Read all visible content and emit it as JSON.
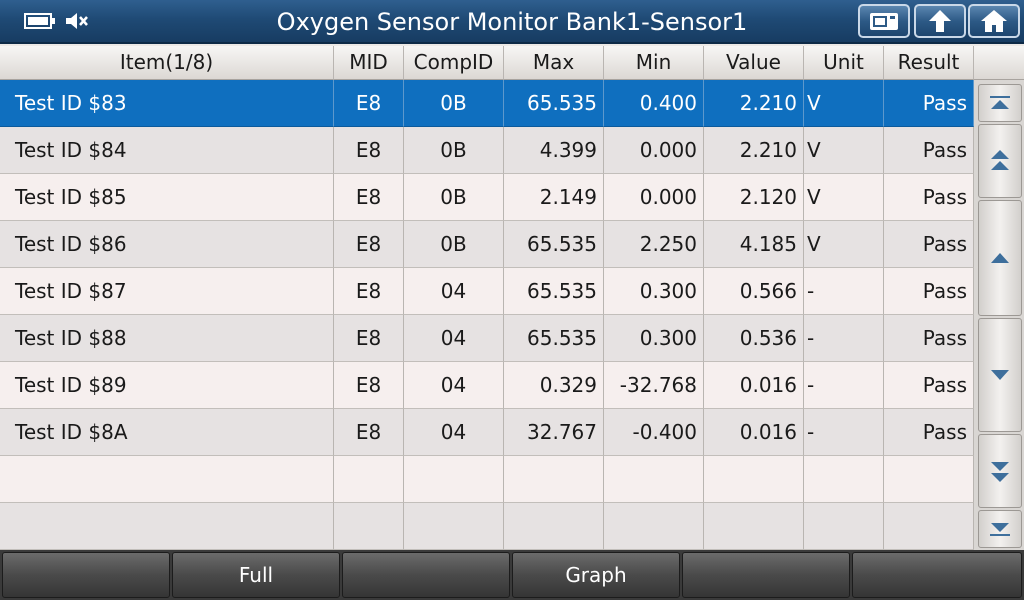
{
  "header": {
    "title": "Oxygen Sensor Monitor Bank1-Sensor1"
  },
  "table": {
    "columns": [
      "Item(1/8)",
      "MID",
      "CompID",
      "Max",
      "Min",
      "Value",
      "Unit",
      "Result"
    ],
    "rows": [
      [
        "Test ID $83",
        "E8",
        "0B",
        "65.535",
        "0.400",
        "2.210",
        "V",
        "Pass"
      ],
      [
        "Test ID $84",
        "E8",
        "0B",
        "4.399",
        "0.000",
        "2.210",
        "V",
        "Pass"
      ],
      [
        "Test ID $85",
        "E8",
        "0B",
        "2.149",
        "0.000",
        "2.120",
        "V",
        "Pass"
      ],
      [
        "Test ID $86",
        "E8",
        "0B",
        "65.535",
        "2.250",
        "4.185",
        "V",
        "Pass"
      ],
      [
        "Test ID $87",
        "E8",
        "04",
        "65.535",
        "0.300",
        "0.566",
        "-",
        "Pass"
      ],
      [
        "Test ID $88",
        "E8",
        "04",
        "65.535",
        "0.300",
        "0.536",
        "-",
        "Pass"
      ],
      [
        "Test ID $89",
        "E8",
        "04",
        "0.329",
        "-32.768",
        "0.016",
        "-",
        "Pass"
      ],
      [
        "Test ID $8A",
        "E8",
        "04",
        "32.767",
        "-0.400",
        "0.016",
        "-",
        "Pass"
      ],
      [
        "",
        "",
        "",
        "",
        "",
        "",
        "",
        ""
      ],
      [
        "",
        "",
        "",
        "",
        "",
        "",
        "",
        ""
      ]
    ]
  },
  "bottom_bar": {
    "buttons": [
      "",
      "Full",
      "",
      "Graph",
      "",
      ""
    ]
  }
}
